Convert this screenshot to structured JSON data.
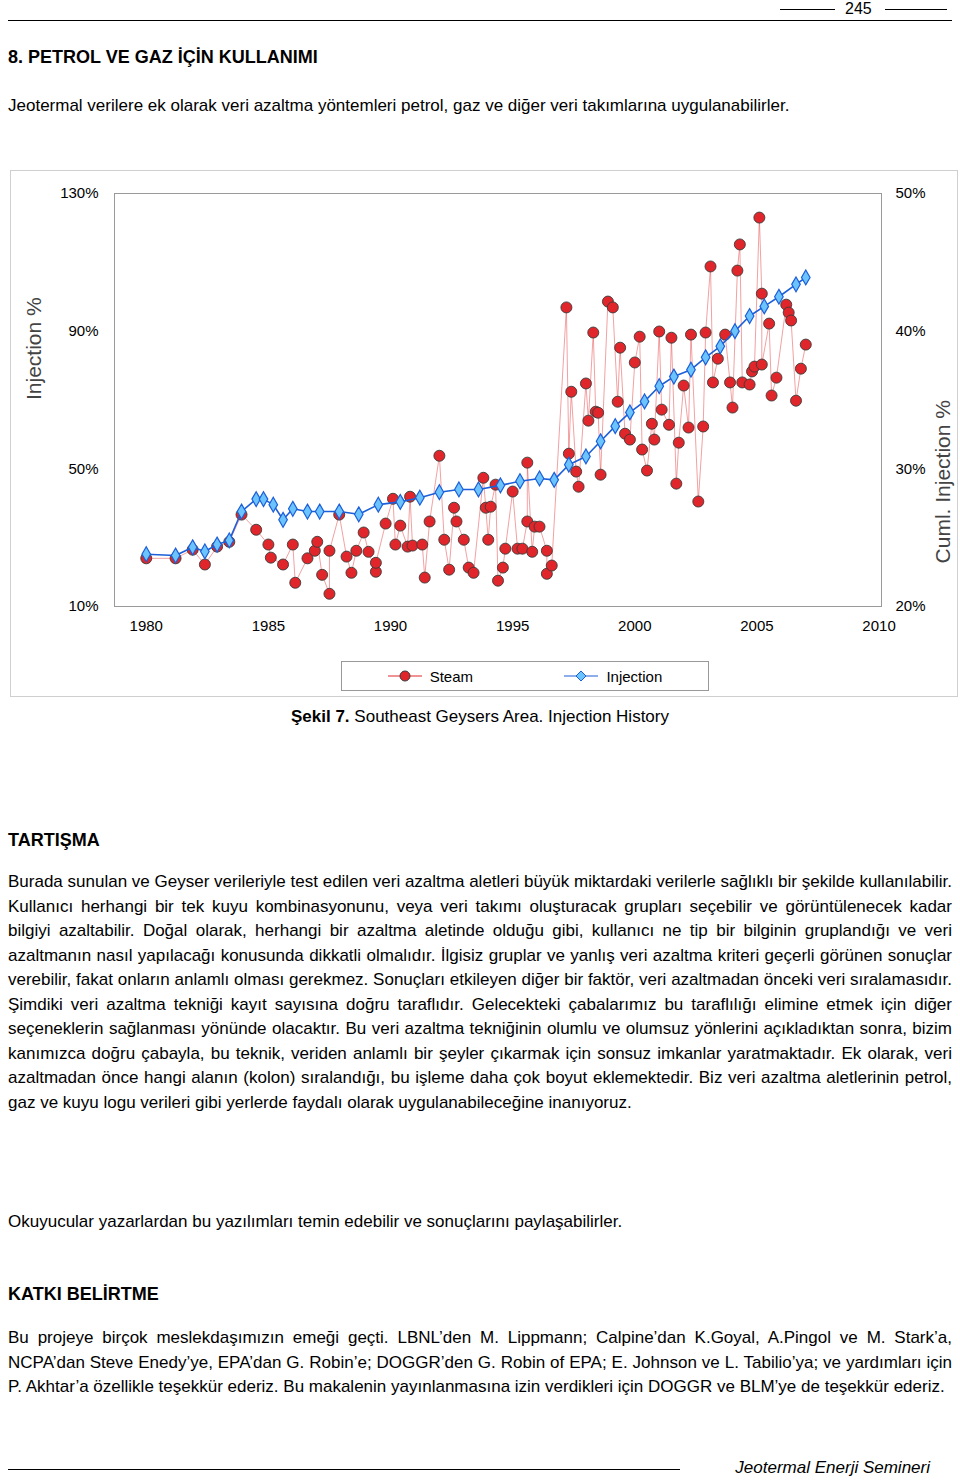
{
  "header": {
    "page_number": "245"
  },
  "section_title": "8. PETROL VE GAZ İÇİN KULLANIMI",
  "intro": "Jeotermal verilere ek olarak veri azaltma yöntemleri petrol, gaz ve diğer veri takımlarına uygulanabilirler.",
  "chart_data": {
    "type": "line",
    "y_label": "Injection %",
    "y2_label": "Cuml. Injection %",
    "xlim": [
      1978.7,
      2010.1
    ],
    "xticks": [
      1980,
      1985,
      1990,
      1995,
      2000,
      2005,
      2010
    ],
    "ylim": [
      10,
      130
    ],
    "yticks": [
      {
        "value": 10,
        "label": "10%"
      },
      {
        "value": 50,
        "label": "50%"
      },
      {
        "value": 90,
        "label": "90%"
      },
      {
        "value": 130,
        "label": "130%"
      }
    ],
    "y2lim": [
      20,
      50
    ],
    "y2ticks": [
      {
        "value": 20,
        "label": "20%"
      },
      {
        "value": 30,
        "label": "30%"
      },
      {
        "value": 40,
        "label": "40%"
      },
      {
        "value": 50,
        "label": "50%"
      }
    ],
    "grid": false,
    "legend": "bottom",
    "series": [
      {
        "name": "Steam",
        "type": "line",
        "color": "#e0262a",
        "marker": "circle",
        "x": [
          1980,
          1981.2,
          1981.9,
          1982.4,
          1982.9,
          1983.4,
          1983.9,
          1984.5,
          1985.0,
          1985.1,
          1985.6,
          1986.0,
          1986.1,
          1986.6,
          1986.9,
          1987.0,
          1987.2,
          1987.5,
          1987.5,
          1987.9,
          1988.2,
          1988.4,
          1988.6,
          1988.9,
          1989.1,
          1989.4,
          1989.4,
          1989.8,
          1990.1,
          1990.2,
          1990.4,
          1990.7,
          1990.8,
          1990.9,
          1991.3,
          1991.4,
          1991.6,
          1992.0,
          1992.2,
          1992.4,
          1992.6,
          1992.7,
          1993.0,
          1993.2,
          1993.4,
          1993.8,
          1993.9,
          1994.0,
          1994.1,
          1994.3,
          1994.4,
          1994.6,
          1994.7,
          1995.0,
          1995.2,
          1995.4,
          1995.6,
          1995.6,
          1995.8,
          1995.9,
          1996.1,
          1996.4,
          1996.4,
          1996.6,
          1997.2,
          1997.3,
          1997.4,
          1997.6,
          1997.7,
          1998.0,
          1998.1,
          1998.3,
          1998.4,
          1998.5,
          1998.6,
          1998.9,
          1999.1,
          1999.3,
          1999.4,
          1999.6,
          1999.8,
          2000.0,
          2000.2,
          2000.3,
          2000.5,
          2000.7,
          2000.8,
          2001.0,
          2001.1,
          2001.4,
          2001.5,
          2001.7,
          2001.8,
          2002.0,
          2002.2,
          2002.3,
          2002.6,
          2002.8,
          2002.9,
          2003.1,
          2003.2,
          2003.4,
          2003.7,
          2003.9,
          2004.0,
          2004.2,
          2004.3,
          2004.4,
          2004.7,
          2004.8,
          2004.9,
          2005.1,
          2005.2,
          2005.2,
          2005.5,
          2005.6,
          2005.8,
          2006.2,
          2006.3,
          2006.4,
          2006.6,
          2006.8,
          2007.0
        ],
        "values": [
          24,
          24,
          26.5,
          22.2,
          27.4,
          28.8,
          36.7,
          32.3,
          28,
          24.2,
          22.2,
          28,
          16.9,
          24,
          26.2,
          28.8,
          19.2,
          13.7,
          26.2,
          36.7,
          24.5,
          19.8,
          26.2,
          31.5,
          25.9,
          20.1,
          22.7,
          34.1,
          41.3,
          28,
          33.5,
          27.4,
          41.9,
          27.7,
          28,
          18.4,
          34.7,
          53.8,
          29.4,
          20.7,
          38.7,
          34.7,
          29.4,
          21.3,
          19.8,
          47.4,
          38.7,
          29.4,
          39,
          45.4,
          17.5,
          21.3,
          26.8,
          43.4,
          26.8,
          26.8,
          34.7,
          51.8,
          25.9,
          33.2,
          33.2,
          26.2,
          19.5,
          21.9,
          96.9,
          54.4,
          72.4,
          49.2,
          44.8,
          74.8,
          64,
          89.6,
          66.6,
          66.3,
          48.3,
          98.6,
          96.9,
          69.5,
          85.2,
          60.2,
          58.5,
          80.9,
          88.4,
          55.6,
          49.5,
          63.1,
          58.5,
          89.9,
          67.2,
          62.8,
          88.1,
          45.7,
          57.6,
          74.2,
          62,
          89,
          40.5,
          62.3,
          89.6,
          108.8,
          75.1,
          82,
          89,
          75.1,
          67.8,
          107.6,
          115.2,
          75.1,
          74.5,
          78.3,
          79.7,
          123,
          100.9,
          80.3,
          92.2,
          71.3,
          76.5,
          97.7,
          95.4,
          93.1,
          69.8,
          79.1,
          86.1
        ]
      },
      {
        "name": "Injection",
        "type": "line",
        "color": "#1c5fd8",
        "marker": "diamond",
        "axis": "y2",
        "x": [
          1980,
          1981.2,
          1981.9,
          1982.4,
          1982.9,
          1983.4,
          1983.9,
          1984.5,
          1984.8,
          1985.2,
          1985.6,
          1986.0,
          1986.6,
          1987.1,
          1987.9,
          1988.7,
          1989.5,
          1990.4,
          1991.2,
          1992.0,
          1992.8,
          1993.6,
          1994.5,
          1995.3,
          1996.1,
          1996.7,
          1997.3,
          1998.0,
          1998.6,
          1999.2,
          1999.8,
          2000.4,
          2001.0,
          2001.6,
          2002.3,
          2002.9,
          2003.5,
          2004.1,
          2004.7,
          2005.3,
          2005.9,
          2006.6,
          2007.0
        ],
        "values": [
          23.8,
          23.7,
          24.3,
          24,
          24.5,
          24.8,
          26.9,
          27.8,
          27.8,
          27.4,
          26.3,
          27.1,
          26.9,
          26.9,
          26.9,
          26.7,
          27.4,
          27.6,
          27.9,
          28.3,
          28.5,
          28.5,
          28.8,
          29.1,
          29.3,
          29.2,
          30.3,
          30.9,
          32,
          33.1,
          34.1,
          34.9,
          36,
          36.7,
          37.2,
          38.1,
          38.9,
          40,
          41.1,
          41.8,
          42.5,
          43.4,
          43.9
        ]
      }
    ]
  },
  "caption": {
    "label": "Şekil 7.",
    "text": "Southeast Geysers Area. Injection History"
  },
  "sections": [
    {
      "title": "TARTIŞMA",
      "paragraphs": [
        "Burada sunulan ve Geyser verileriyle test edilen veri azaltma aletleri büyük miktardaki verilerle sağlıklı bir şekilde kullanılabilir. Kullanıcı herhangi bir tek kuyu kombinasyonunu, veya veri takımı oluşturacak grupları seçebilir ve görüntülenecek kadar bilgiyi azaltabilir. Doğal olarak, herhangi bir azaltma aletinde olduğu gibi, kullanıcı ne tip bir bilginin gruplandığı ve veri azaltmanın nasıl yapılacağı konusunda dikkatli olmalıdır. İlgisiz gruplar ve yanlış veri azaltma kriteri geçerli görünen sonuçlar verebilir, fakat onların anlamlı olması gerekmez. Sonuçları etkileyen diğer bir faktör, veri azaltmadan önceki veri sıralamasıdır. Şimdiki veri azaltma tekniği kayıt sayısına doğru taraflıdır. Gelecekteki çabalarımız bu taraflılığı elimine etmek için diğer seçeneklerin sağlanması yönünde olacaktır. Bu veri azaltma tekniğinin olumlu ve olumsuz yönlerini açıkladıktan sonra, bizim kanımızca doğru çabayla, bu teknik, veriden anlamlı bir şeyler çıkarmak için sonsuz imkanlar yaratmaktadır. Ek olarak, veri azaltmadan önce hangi alanın (kolon) sıralandığı, bu işleme daha çok boyut eklemektedir. Biz veri azaltma aletlerinin petrol, gaz ve kuyu logu verileri gibi yerlerde faydalı olarak uygulanabileceğine inanıyoruz.",
        "Okuyucular yazarlardan bu yazılımları temin edebilir ve sonuçlarını paylaşabilirler."
      ]
    },
    {
      "title": "KATKI BELİRTME",
      "paragraphs": [
        "Bu projeye birçok meslekdaşımızın emeği geçti.  LBNL’den M. Lippmann; Calpine’dan K.Goyal, A.Pingol ve M. Stark’a, NCPA’dan Steve Enedy’ye, EPA’dan G. Robin’e;  DOGGR’den G. Robin of EPA; E. Johnson ve L. Tabilio’ya;  ve yardımları için P. Akhtar’a özellikle teşekkür ederiz. Bu makalenin yayınlanmasına izin verdikleri için DOGGR ve BLM’ye de teşekkür ederiz."
      ]
    }
  ],
  "footer": "Jeotermal Enerji Semineri"
}
